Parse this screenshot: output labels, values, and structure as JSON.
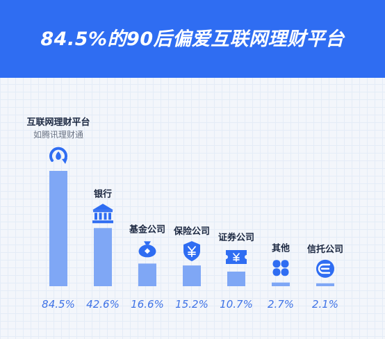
{
  "banner": {
    "title": "84.5%的90后偏爱互联网理财平台"
  },
  "chart_data": {
    "type": "bar",
    "title": "84.5%的90后偏爱互联网理财平台",
    "categories": [
      "互联网理财平台",
      "银行",
      "基金公司",
      "保险公司",
      "证券公司",
      "其他",
      "信托公司"
    ],
    "sublabels": [
      "如腾讯理财通",
      "",
      "",
      "",
      "",
      "",
      ""
    ],
    "values": [
      84.5,
      42.6,
      16.6,
      15.2,
      10.7,
      2.7,
      2.1
    ],
    "value_labels": [
      "84.5%",
      "42.6%",
      "16.6%",
      "15.2%",
      "10.7%",
      "2.7%",
      "2.1%"
    ],
    "icons": [
      "wealth-app-icon",
      "bank-icon",
      "money-bag-icon",
      "shield-yuan-icon",
      "ticket-yuan-icon",
      "four-petal-icon",
      "trust-e-icon"
    ],
    "ylim": [
      0,
      84.5
    ],
    "grid": false,
    "colors": {
      "bar": "#7fa7f5",
      "icon": "#2f6df2",
      "value": "#3f73e6",
      "banner": "#2f6df2"
    }
  }
}
